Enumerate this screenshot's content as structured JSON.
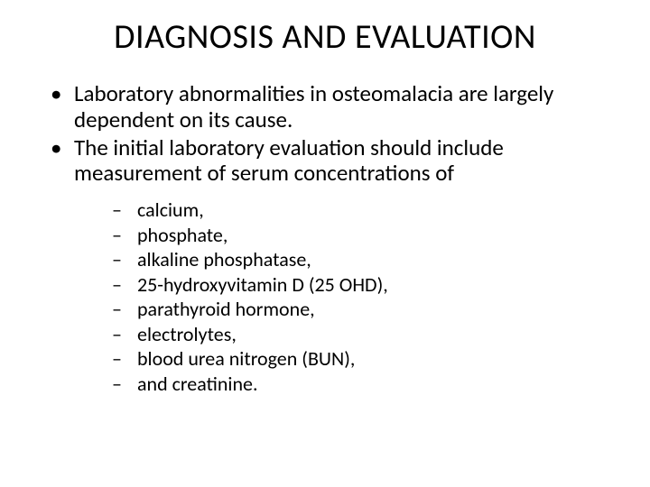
{
  "title": "DIAGNOSIS AND EVALUATION",
  "bullets": [
    "Laboratory abnormalities in osteomalacia are largely dependent on its cause.",
    "The initial laboratory evaluation should include measurement of serum concentrations of"
  ],
  "subbullets": [
    "calcium,",
    "phosphate,",
    "alkaline phosphatase,",
    "25-hydroxyvitamin D (25 OHD),",
    "parathyroid hormone,",
    "electrolytes,",
    "blood urea nitrogen (BUN),",
    " and creatinine."
  ],
  "colors": {
    "background": "#ffffff",
    "text": "#000000"
  },
  "typography": {
    "title_fontsize": 38,
    "bullet_fontsize": 25,
    "sub_fontsize": 22,
    "font_family": "Calibri"
  }
}
